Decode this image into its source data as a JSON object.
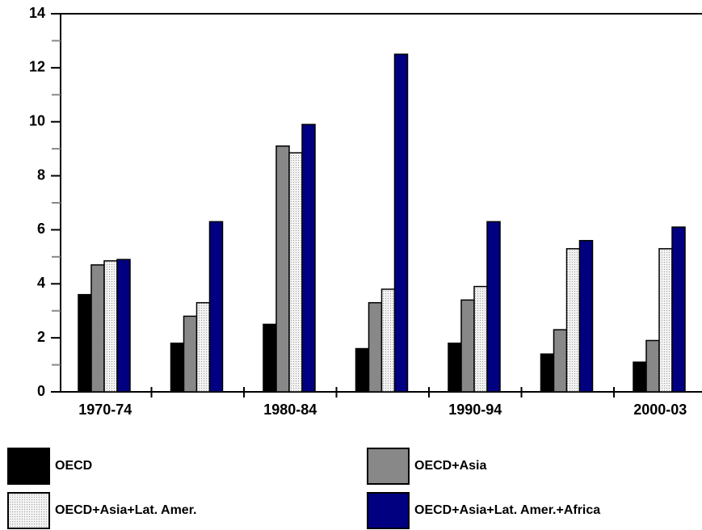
{
  "chart_data": {
    "type": "bar",
    "categories": [
      "1970-74",
      null,
      "1980-84",
      null,
      "1990-94",
      null,
      "2000-03"
    ],
    "series": [
      {
        "name": "OECD",
        "color": "#000000",
        "values": [
          3.6,
          1.8,
          2.5,
          1.6,
          1.8,
          1.4,
          1.1
        ]
      },
      {
        "name": "OECD+Asia",
        "color": "#888888",
        "values": [
          4.7,
          2.8,
          9.1,
          3.3,
          3.4,
          2.3,
          1.9
        ]
      },
      {
        "name": "OECD+Asia+Lat. Amer.",
        "color": "#e4e4e4",
        "pattern": "dotted",
        "values": [
          4.85,
          3.3,
          8.85,
          3.8,
          3.9,
          5.3,
          5.3
        ]
      },
      {
        "name": "OECD+Asia+Lat. Amer.+Africa",
        "color": "#000080",
        "values": [
          4.9,
          6.3,
          9.9,
          12.5,
          6.3,
          5.6,
          6.1
        ]
      }
    ],
    "ylim": [
      0,
      14
    ],
    "yticks": [
      0,
      2,
      4,
      6,
      8,
      10,
      12,
      14
    ],
    "minor_yticks": [
      1,
      3,
      5,
      7,
      9,
      11,
      13
    ],
    "grid": false
  }
}
